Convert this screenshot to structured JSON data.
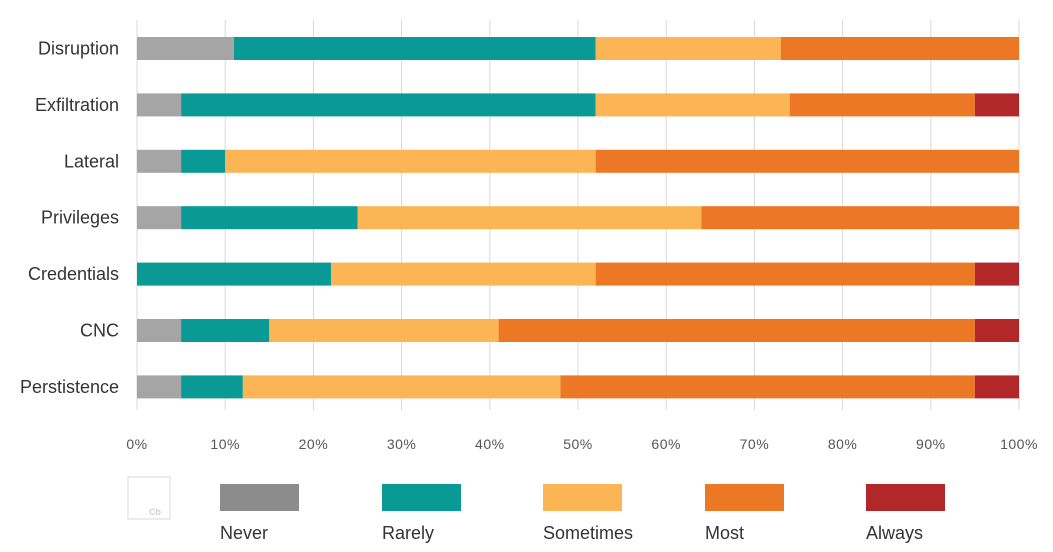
{
  "chart_data": {
    "type": "bar",
    "orientation": "horizontal",
    "stacked": true,
    "normalized": true,
    "title": "",
    "xlabel": "",
    "ylabel": "",
    "categories": [
      "Disruption",
      "Exfiltration",
      "Lateral",
      "Privileges",
      "Credentials",
      "CNC",
      "Perstistence"
    ],
    "series": [
      {
        "name": "Never",
        "color": "#a5a5a5",
        "values": [
          11,
          5,
          5,
          5,
          0,
          5,
          5
        ]
      },
      {
        "name": "Rarely",
        "color": "#0a9a96",
        "values": [
          41,
          47,
          5,
          20,
          22,
          10,
          7
        ]
      },
      {
        "name": "Sometimes",
        "color": "#fcb555",
        "values": [
          21,
          22,
          42,
          39,
          30,
          26,
          36
        ]
      },
      {
        "name": "Most",
        "color": "#ec7826",
        "values": [
          27,
          21,
          48,
          36,
          43,
          54,
          47
        ]
      },
      {
        "name": "Always",
        "color": "#b22828",
        "values": [
          0,
          5,
          0,
          0,
          5,
          5,
          5
        ]
      }
    ],
    "xlim": [
      0,
      100
    ],
    "x_ticks": [
      "0%",
      "10%",
      "20%",
      "30%",
      "40%",
      "50%",
      "60%",
      "70%",
      "80%",
      "90%",
      "100%"
    ],
    "grid": true,
    "legend_position": "bottom",
    "watermark": "Cb"
  }
}
